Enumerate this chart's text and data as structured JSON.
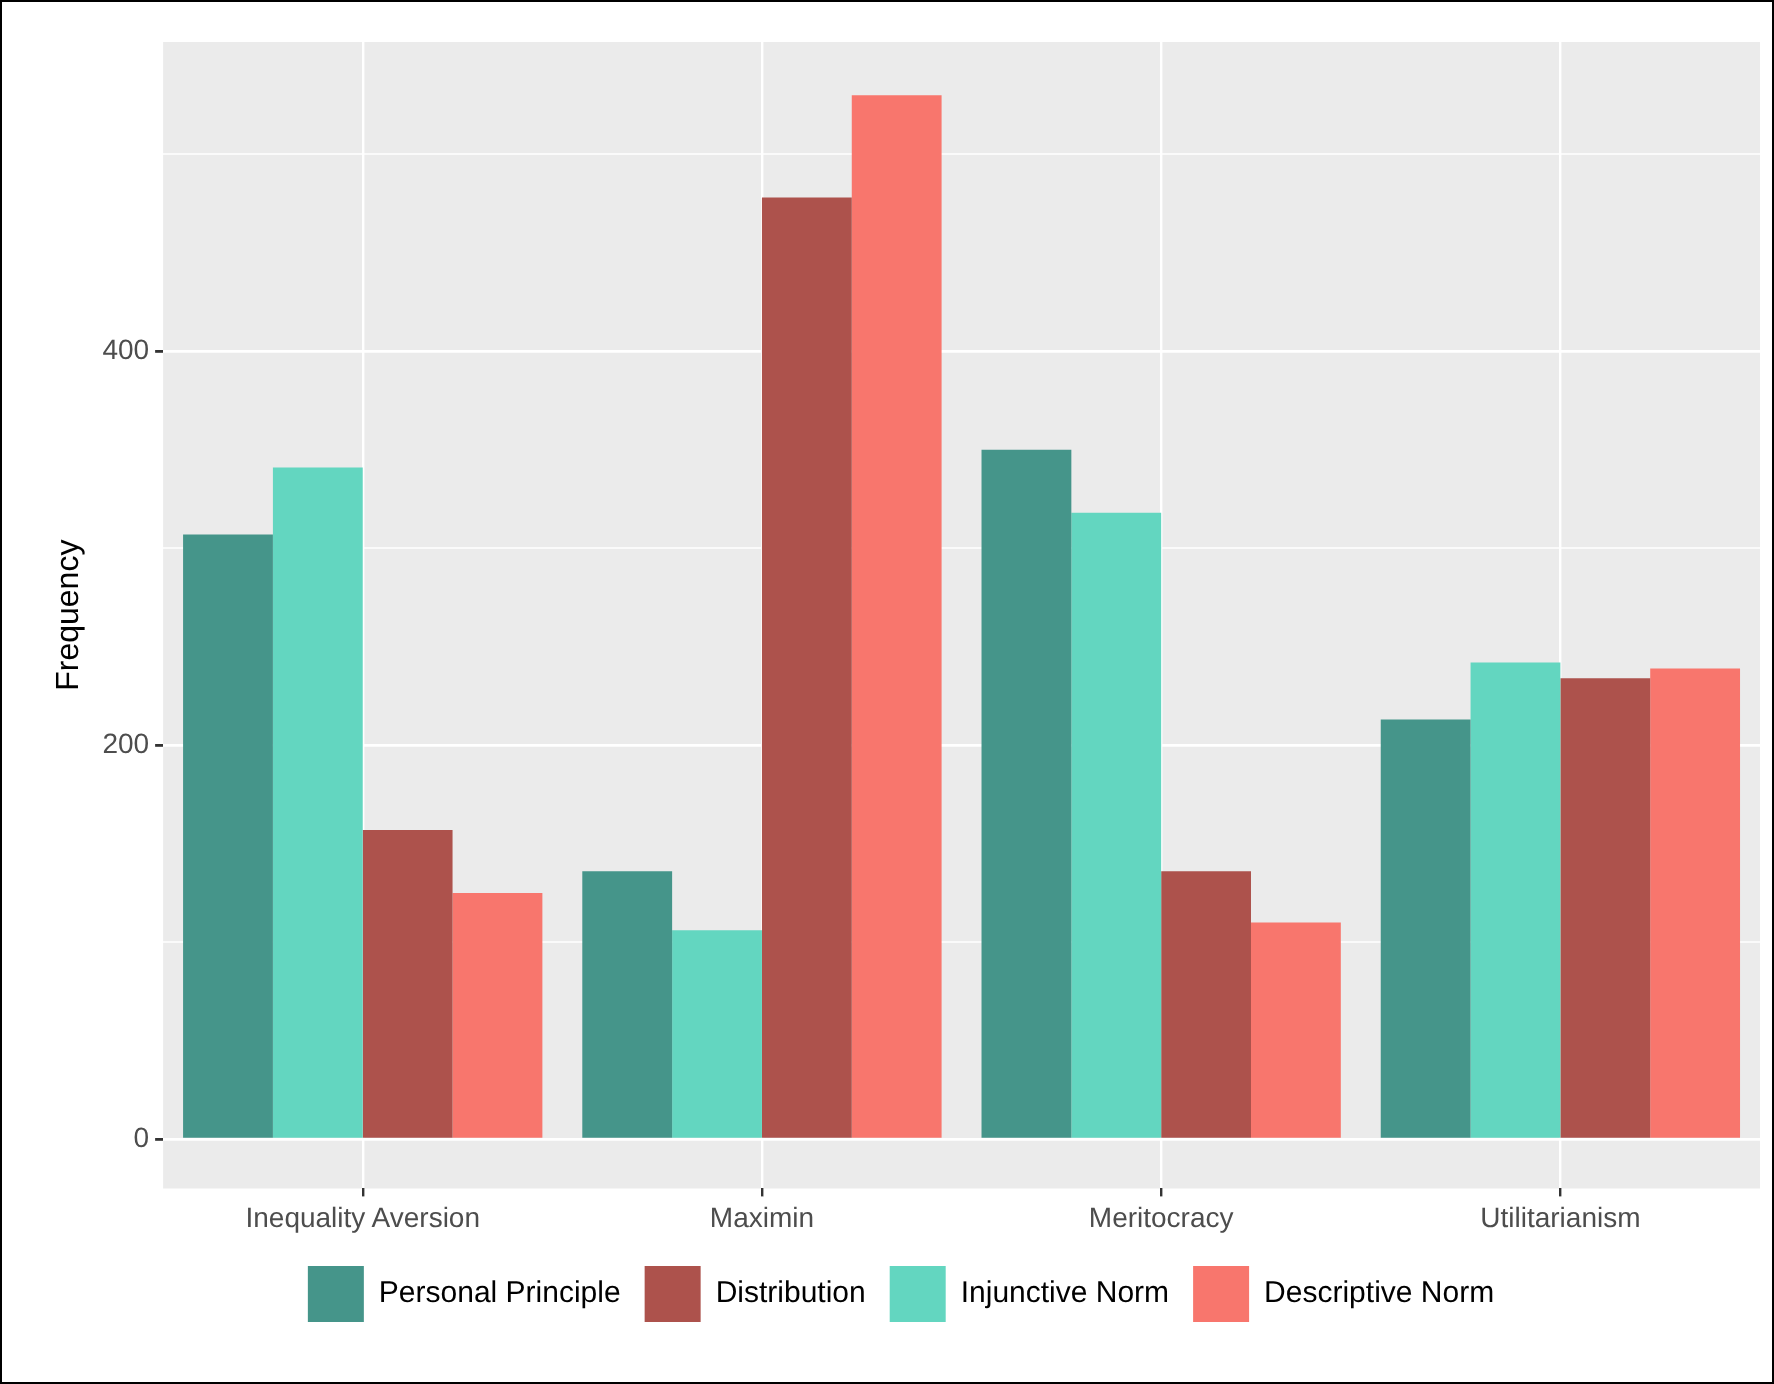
{
  "chart_data": {
    "type": "bar",
    "ylabel": "Frequency",
    "categories": [
      "Inequality Aversion",
      "Maximin",
      "Meritocracy",
      "Utilitarianism"
    ],
    "series": [
      {
        "name": "Personal Principle",
        "color": "#45958a",
        "values": [
          307,
          136,
          350,
          213
        ]
      },
      {
        "name": "Injunctive Norm",
        "color": "#63d6c0",
        "values": [
          341,
          106,
          318,
          242
        ]
      },
      {
        "name": "Distribution",
        "color": "#ad524c",
        "values": [
          157,
          478,
          136,
          234
        ]
      },
      {
        "name": "Descriptive Norm",
        "color": "#f8766d",
        "values": [
          125,
          530,
          110,
          239
        ]
      }
    ],
    "ylim": [
      -25,
      557
    ],
    "yticks": [
      0,
      {
        "value": 100,
        "label": null
      },
      200,
      {
        "value": 300,
        "label": null
      },
      400,
      {
        "value": 500,
        "label": null
      }
    ],
    "grid": true,
    "legend": "bottom"
  }
}
